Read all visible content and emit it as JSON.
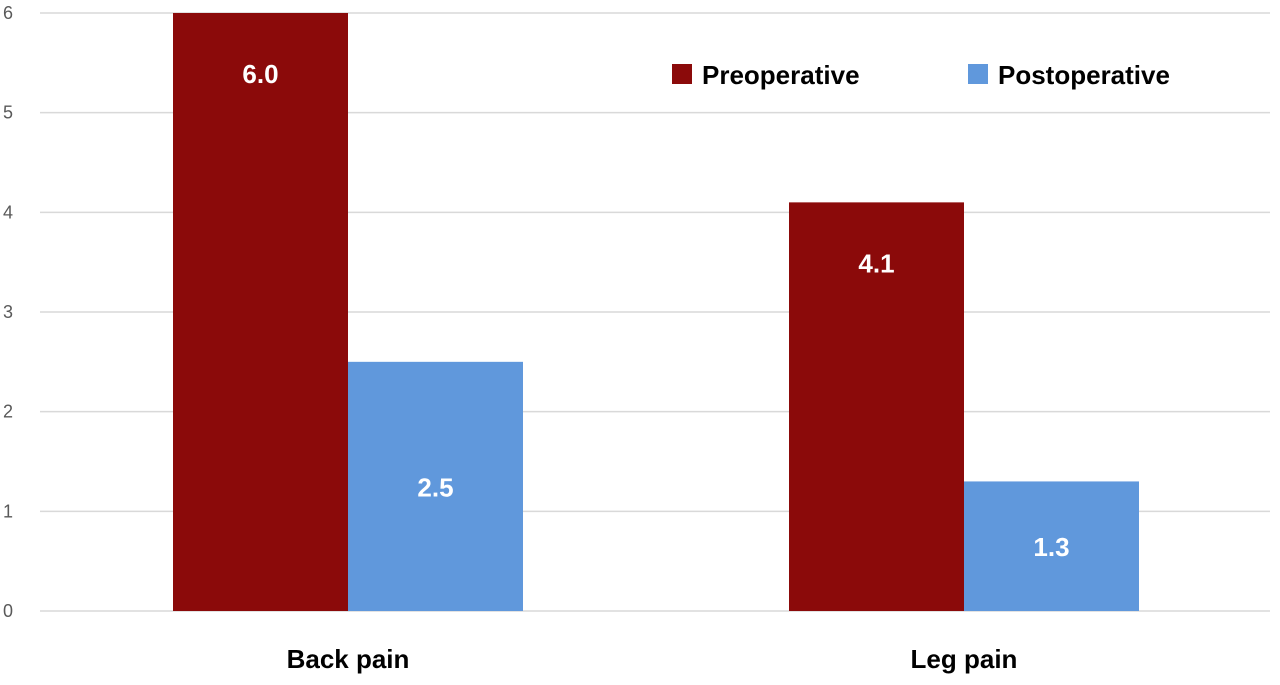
{
  "chart_data": {
    "type": "bar",
    "categories": [
      "Back pain",
      "Leg pain"
    ],
    "series": [
      {
        "name": "Preoperative",
        "values": [
          6.0,
          4.1
        ],
        "labels": [
          "6.0",
          "4.1"
        ],
        "color": "#8B0A0A"
      },
      {
        "name": "Postoperative",
        "values": [
          2.5,
          1.3
        ],
        "labels": [
          "2.5",
          "1.3"
        ],
        "color": "#6098DC"
      }
    ],
    "ylim": [
      0,
      6
    ],
    "yticks": [
      "0",
      "1",
      "2",
      "3",
      "4",
      "5",
      "6"
    ],
    "grid": true,
    "legend": "top-right",
    "title": "",
    "xlabel": "",
    "ylabel": ""
  }
}
